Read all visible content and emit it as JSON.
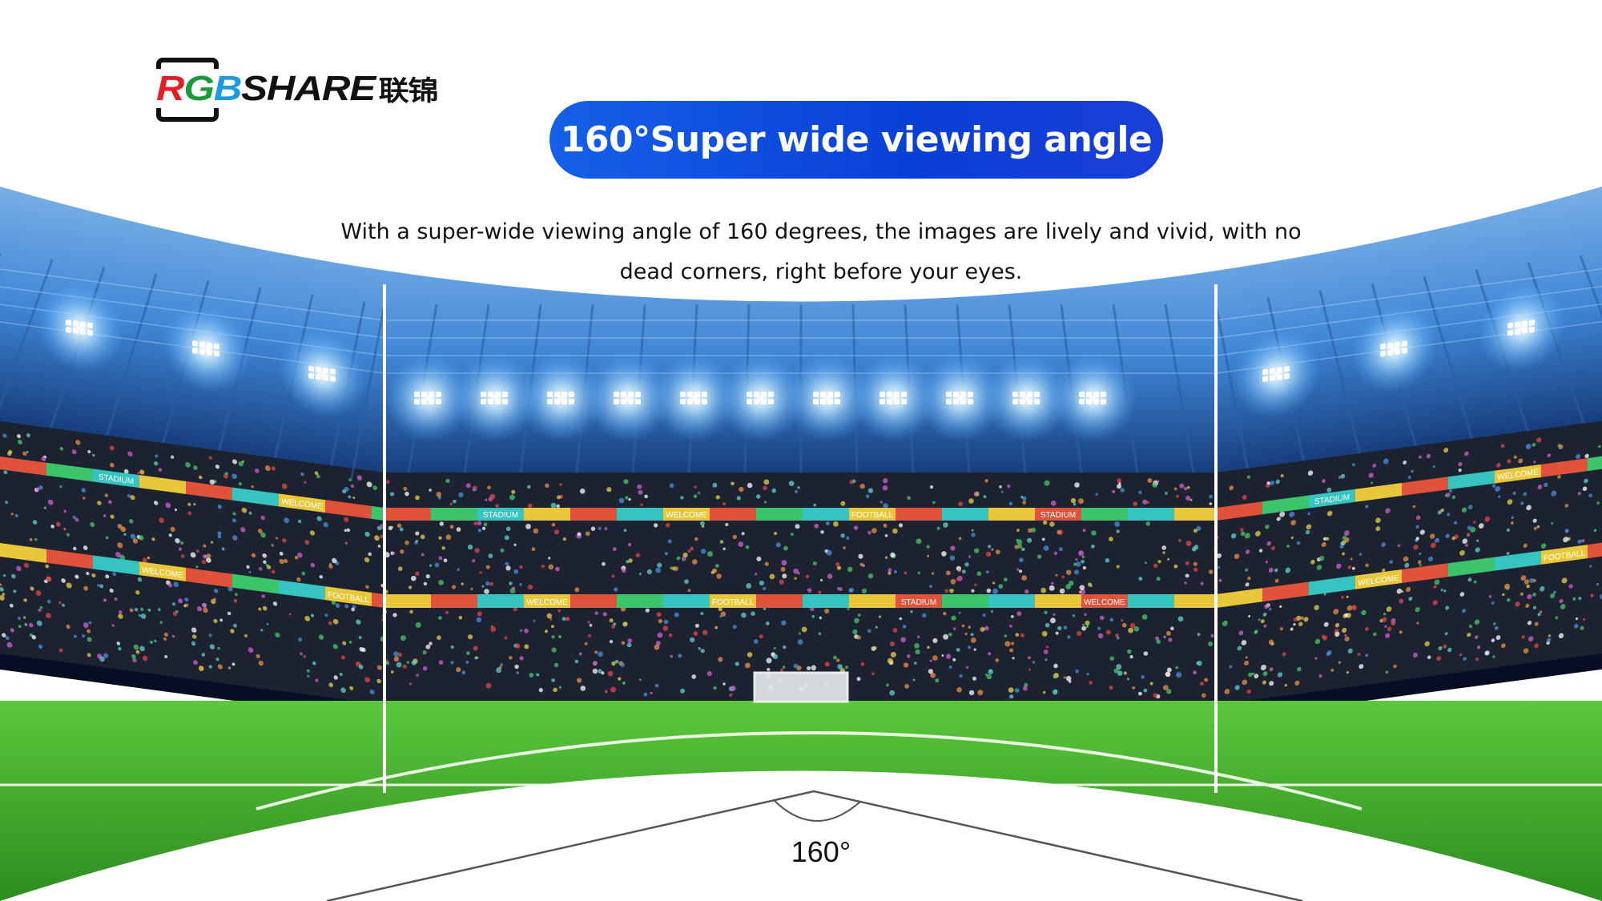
{
  "logo": {
    "text_rgb": [
      "R",
      "G",
      "B"
    ],
    "text_share": "SHARE",
    "text_cn": "联锦"
  },
  "title": "160°Super wide viewing angle",
  "description": "With a super-wide viewing angle of 160 degrees, the images are lively and vivid, with no dead corners, right before your eyes.",
  "angle_label": "160°",
  "banner_words": [
    "WELCOME",
    "FOOTBALL",
    "STADIUM"
  ],
  "colors": {
    "title_pill": "#0a3fd6",
    "field": "#3fae2a",
    "roof": "#4a8fd8",
    "banner_teal": "#35c4c0",
    "banner_yellow": "#e8c83a",
    "banner_red": "#e0523a",
    "banner_green": "#3cc46a"
  }
}
